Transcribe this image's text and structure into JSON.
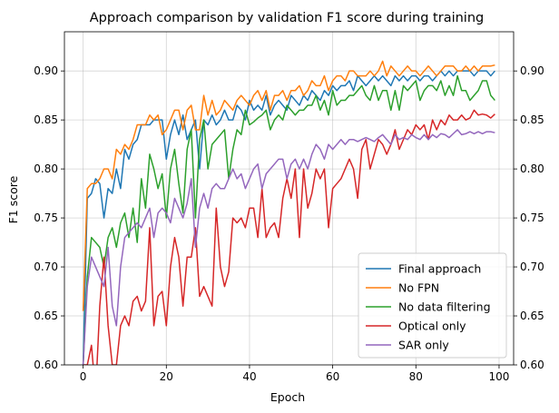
{
  "chart_data": {
    "type": "line",
    "title": "Approach comparison by validation F1 score during training",
    "xlabel": "Epoch",
    "ylabel": "F1 score",
    "xlim": [
      -4.5,
      103.5
    ],
    "ylim": [
      0.6,
      0.94
    ],
    "xticks": [
      0,
      20,
      40,
      60,
      80,
      100
    ],
    "yticks": [
      0.6,
      0.65,
      0.7,
      0.75,
      0.8,
      0.85,
      0.9
    ],
    "ytick_labels": [
      "0.60",
      "0.65",
      "0.70",
      "0.75",
      "0.80",
      "0.85",
      "0.90"
    ],
    "right_axis_ticks": true,
    "grid": true,
    "legend": "lower-right",
    "series": [
      {
        "name": "Final approach",
        "color": "#1f77b4",
        "values": [
          0.6,
          0.77,
          0.775,
          0.79,
          0.785,
          0.75,
          0.78,
          0.775,
          0.8,
          0.78,
          0.82,
          0.81,
          0.825,
          0.83,
          0.845,
          0.845,
          0.845,
          0.85,
          0.85,
          0.85,
          0.81,
          0.835,
          0.85,
          0.835,
          0.855,
          0.83,
          0.84,
          0.85,
          0.8,
          0.85,
          0.845,
          0.855,
          0.845,
          0.85,
          0.86,
          0.85,
          0.85,
          0.865,
          0.86,
          0.85,
          0.87,
          0.86,
          0.865,
          0.86,
          0.875,
          0.855,
          0.865,
          0.87,
          0.865,
          0.86,
          0.875,
          0.87,
          0.865,
          0.875,
          0.87,
          0.88,
          0.875,
          0.87,
          0.88,
          0.875,
          0.885,
          0.88,
          0.885,
          0.885,
          0.89,
          0.88,
          0.895,
          0.89,
          0.885,
          0.89,
          0.895,
          0.89,
          0.895,
          0.89,
          0.885,
          0.895,
          0.89,
          0.895,
          0.89,
          0.895,
          0.895,
          0.89,
          0.895,
          0.895,
          0.89,
          0.895,
          0.9,
          0.895,
          0.9,
          0.895,
          0.9,
          0.9,
          0.9,
          0.9,
          0.895,
          0.9,
          0.9,
          0.9,
          0.895,
          0.9
        ]
      },
      {
        "name": "No FPN",
        "color": "#ff7f0e",
        "values": [
          0.655,
          0.78,
          0.785,
          0.785,
          0.79,
          0.8,
          0.8,
          0.79,
          0.82,
          0.815,
          0.825,
          0.82,
          0.83,
          0.845,
          0.845,
          0.845,
          0.855,
          0.85,
          0.855,
          0.835,
          0.84,
          0.85,
          0.86,
          0.86,
          0.84,
          0.86,
          0.865,
          0.84,
          0.84,
          0.875,
          0.855,
          0.87,
          0.855,
          0.86,
          0.87,
          0.865,
          0.86,
          0.87,
          0.875,
          0.87,
          0.865,
          0.875,
          0.88,
          0.87,
          0.88,
          0.86,
          0.875,
          0.875,
          0.88,
          0.87,
          0.88,
          0.88,
          0.885,
          0.875,
          0.88,
          0.89,
          0.885,
          0.885,
          0.895,
          0.88,
          0.89,
          0.895,
          0.895,
          0.89,
          0.9,
          0.9,
          0.895,
          0.895,
          0.895,
          0.9,
          0.895,
          0.9,
          0.91,
          0.895,
          0.905,
          0.9,
          0.895,
          0.9,
          0.905,
          0.9,
          0.9,
          0.895,
          0.9,
          0.905,
          0.9,
          0.895,
          0.9,
          0.905,
          0.905,
          0.905,
          0.9,
          0.9,
          0.905,
          0.9,
          0.905,
          0.9,
          0.905,
          0.905,
          0.905,
          0.906
        ]
      },
      {
        "name": "No data filtering",
        "color": "#2ca02c",
        "values": [
          0.6,
          0.69,
          0.73,
          0.725,
          0.72,
          0.7,
          0.73,
          0.74,
          0.72,
          0.745,
          0.755,
          0.73,
          0.76,
          0.725,
          0.79,
          0.76,
          0.815,
          0.8,
          0.78,
          0.795,
          0.75,
          0.8,
          0.82,
          0.785,
          0.755,
          0.82,
          0.84,
          0.75,
          0.83,
          0.85,
          0.8,
          0.825,
          0.83,
          0.835,
          0.84,
          0.79,
          0.82,
          0.84,
          0.835,
          0.86,
          0.845,
          0.848,
          0.852,
          0.855,
          0.86,
          0.84,
          0.85,
          0.855,
          0.85,
          0.865,
          0.86,
          0.855,
          0.86,
          0.86,
          0.865,
          0.865,
          0.875,
          0.86,
          0.87,
          0.855,
          0.88,
          0.865,
          0.87,
          0.87,
          0.875,
          0.875,
          0.88,
          0.885,
          0.875,
          0.87,
          0.885,
          0.87,
          0.88,
          0.88,
          0.86,
          0.88,
          0.86,
          0.885,
          0.88,
          0.885,
          0.89,
          0.87,
          0.88,
          0.885,
          0.885,
          0.88,
          0.89,
          0.875,
          0.885,
          0.875,
          0.895,
          0.88,
          0.88,
          0.87,
          0.875,
          0.88,
          0.89,
          0.89,
          0.875,
          0.87
        ]
      },
      {
        "name": "Optical only",
        "color": "#d62728",
        "values": [
          0.6,
          0.6,
          0.62,
          0.57,
          0.66,
          0.71,
          0.64,
          0.6,
          0.6,
          0.64,
          0.65,
          0.64,
          0.665,
          0.67,
          0.655,
          0.665,
          0.74,
          0.64,
          0.67,
          0.675,
          0.64,
          0.7,
          0.73,
          0.71,
          0.66,
          0.71,
          0.71,
          0.74,
          0.67,
          0.68,
          0.67,
          0.66,
          0.76,
          0.7,
          0.68,
          0.695,
          0.75,
          0.745,
          0.75,
          0.74,
          0.76,
          0.76,
          0.73,
          0.78,
          0.73,
          0.74,
          0.745,
          0.73,
          0.77,
          0.79,
          0.77,
          0.8,
          0.73,
          0.8,
          0.76,
          0.775,
          0.8,
          0.79,
          0.8,
          0.74,
          0.78,
          0.785,
          0.79,
          0.8,
          0.81,
          0.8,
          0.77,
          0.82,
          0.83,
          0.8,
          0.815,
          0.83,
          0.825,
          0.815,
          0.825,
          0.84,
          0.82,
          0.83,
          0.84,
          0.835,
          0.845,
          0.84,
          0.845,
          0.83,
          0.85,
          0.84,
          0.85,
          0.845,
          0.855,
          0.85,
          0.85,
          0.855,
          0.85,
          0.852,
          0.86,
          0.855,
          0.856,
          0.855,
          0.852,
          0.856
        ]
      },
      {
        "name": "SAR only",
        "color": "#9467bd",
        "values": [
          0.6,
          0.68,
          0.71,
          0.7,
          0.69,
          0.68,
          0.72,
          0.66,
          0.64,
          0.7,
          0.73,
          0.735,
          0.74,
          0.745,
          0.74,
          0.75,
          0.76,
          0.73,
          0.755,
          0.76,
          0.755,
          0.745,
          0.77,
          0.76,
          0.75,
          0.765,
          0.79,
          0.72,
          0.76,
          0.775,
          0.76,
          0.78,
          0.785,
          0.78,
          0.78,
          0.79,
          0.8,
          0.79,
          0.795,
          0.78,
          0.79,
          0.8,
          0.805,
          0.78,
          0.795,
          0.8,
          0.805,
          0.81,
          0.81,
          0.79,
          0.805,
          0.81,
          0.8,
          0.81,
          0.8,
          0.815,
          0.825,
          0.82,
          0.81,
          0.825,
          0.82,
          0.825,
          0.83,
          0.825,
          0.83,
          0.83,
          0.828,
          0.83,
          0.832,
          0.83,
          0.828,
          0.832,
          0.835,
          0.83,
          0.825,
          0.835,
          0.83,
          0.832,
          0.83,
          0.835,
          0.832,
          0.83,
          0.835,
          0.83,
          0.835,
          0.832,
          0.836,
          0.835,
          0.832,
          0.836,
          0.84,
          0.835,
          0.836,
          0.838,
          0.836,
          0.838,
          0.836,
          0.838,
          0.838,
          0.837
        ]
      }
    ]
  }
}
